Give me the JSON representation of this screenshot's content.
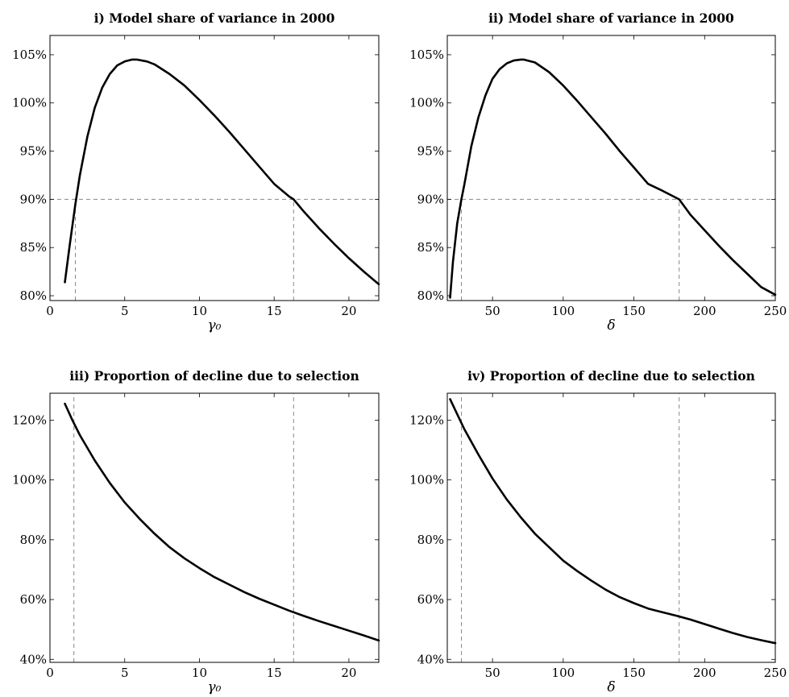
{
  "chart_data": [
    {
      "type": "line",
      "title": "i) Model share of variance in 2000",
      "xlabel": "γ₀",
      "ylabel": "",
      "xlim": [
        0,
        22
      ],
      "ylim": [
        79.5,
        107
      ],
      "xticks": [
        0,
        5,
        10,
        15,
        20
      ],
      "xtick_labels": [
        "0",
        "5",
        "10",
        "15",
        "20"
      ],
      "yticks": [
        80,
        85,
        90,
        95,
        100,
        105
      ],
      "ytick_labels": [
        "80%",
        "85%",
        "90%",
        "95%",
        "100%",
        "105%"
      ],
      "series": [
        {
          "x": [
            1,
            1.3,
            1.7,
            2,
            2.5,
            3,
            3.5,
            4,
            4.5,
            5,
            5.5,
            5.8,
            6.5,
            7,
            8,
            9,
            10,
            11,
            12,
            13,
            14,
            15,
            16,
            16.3,
            17,
            18,
            19,
            20,
            21,
            22
          ],
          "y": [
            81.4,
            85,
            89.5,
            92.5,
            96.5,
            99.5,
            101.6,
            103.0,
            103.9,
            104.3,
            104.5,
            104.5,
            104.3,
            104.0,
            103.0,
            101.8,
            100.3,
            98.7,
            97.0,
            95.2,
            93.4,
            91.6,
            90.3,
            90.0,
            88.7,
            87.0,
            85.4,
            83.9,
            82.5,
            81.2
          ]
        }
      ],
      "h_lines": [
        {
          "y": 90,
          "x_from": 0,
          "x_to": 22
        }
      ],
      "v_lines": [
        {
          "x": 1.7,
          "y_to": 90
        },
        {
          "x": 16.3,
          "y_to": 90
        }
      ],
      "grid": false,
      "legend": "none"
    },
    {
      "type": "line",
      "title": "ii) Model share of variance in 2000",
      "xlabel": "δ",
      "ylabel": "",
      "xlim": [
        18,
        250
      ],
      "ylim": [
        79.5,
        107
      ],
      "xticks": [
        50,
        100,
        150,
        200,
        250
      ],
      "xtick_labels": [
        "50",
        "100",
        "150",
        "200",
        "250"
      ],
      "yticks": [
        80,
        85,
        90,
        95,
        100,
        105
      ],
      "ytick_labels": [
        "80%",
        "85%",
        "90%",
        "95%",
        "100%",
        "105%"
      ],
      "series": [
        {
          "x": [
            20,
            22,
            25,
            28,
            30,
            35,
            40,
            45,
            50,
            55,
            60,
            65,
            70,
            72,
            80,
            90,
            100,
            110,
            120,
            130,
            140,
            150,
            160,
            170,
            182,
            190,
            200,
            210,
            220,
            230,
            240,
            250
          ],
          "y": [
            79.8,
            83.5,
            87.5,
            90,
            91.5,
            95.5,
            98.5,
            100.8,
            102.5,
            103.5,
            104.1,
            104.4,
            104.5,
            104.5,
            104.2,
            103.2,
            101.8,
            100.2,
            98.5,
            96.8,
            95.0,
            93.3,
            91.6,
            90.9,
            90.0,
            88.4,
            86.8,
            85.2,
            83.7,
            82.3,
            80.9,
            80.1
          ]
        }
      ],
      "h_lines": [
        {
          "y": 90,
          "x_from": 18,
          "x_to": 250
        }
      ],
      "v_lines": [
        {
          "x": 28,
          "y_to": 90
        },
        {
          "x": 182,
          "y_to": 90
        }
      ],
      "grid": false,
      "legend": "none"
    },
    {
      "type": "line",
      "title": "iii) Proportion of decline due to selection",
      "xlabel": "γ₀",
      "ylabel": "",
      "xlim": [
        0,
        22
      ],
      "ylim": [
        39,
        129
      ],
      "xticks": [
        0,
        5,
        10,
        15,
        20
      ],
      "xtick_labels": [
        "0",
        "5",
        "10",
        "15",
        "20"
      ],
      "yticks": [
        40,
        60,
        80,
        100,
        120
      ],
      "ytick_labels": [
        "40%",
        "60%",
        "80%",
        "100%",
        "120%"
      ],
      "series": [
        {
          "x": [
            1,
            1.5,
            2,
            3,
            4,
            5,
            6,
            7,
            8,
            9,
            10,
            11,
            12,
            13,
            14,
            15,
            16,
            17,
            18,
            19,
            20,
            21,
            22
          ],
          "y": [
            125.5,
            120,
            115,
            106.5,
            99,
            92.5,
            87,
            82,
            77.5,
            73.8,
            70.5,
            67.5,
            65,
            62.5,
            60.3,
            58.3,
            56.3,
            54.5,
            52.8,
            51.2,
            49.6,
            48.0,
            46.3
          ]
        }
      ],
      "h_lines": [],
      "v_lines": [
        {
          "x": 1.6,
          "y_to": 129
        },
        {
          "x": 16.3,
          "y_to": 129
        }
      ],
      "grid": false,
      "legend": "none"
    },
    {
      "type": "line",
      "title": "iv) Proportion of decline due to selection",
      "xlabel": "δ",
      "ylabel": "",
      "xlim": [
        18,
        250
      ],
      "ylim": [
        39,
        129
      ],
      "xticks": [
        50,
        100,
        150,
        200,
        250
      ],
      "xtick_labels": [
        "50",
        "100",
        "150",
        "200",
        "250"
      ],
      "yticks": [
        40,
        60,
        80,
        100,
        120
      ],
      "ytick_labels": [
        "40%",
        "60%",
        "80%",
        "100%",
        "120%"
      ],
      "series": [
        {
          "x": [
            20,
            25,
            30,
            40,
            50,
            60,
            70,
            80,
            90,
            100,
            110,
            120,
            130,
            140,
            150,
            160,
            170,
            180,
            190,
            200,
            210,
            220,
            230,
            240,
            250
          ],
          "y": [
            127,
            122,
            117,
            108.5,
            100.5,
            93.5,
            87.5,
            82,
            77.5,
            73,
            69.5,
            66.3,
            63.3,
            60.8,
            58.8,
            57,
            55.8,
            54.6,
            53.3,
            51.8,
            50.3,
            48.8,
            47.5,
            46.4,
            45.4
          ]
        }
      ],
      "h_lines": [],
      "v_lines": [
        {
          "x": 28,
          "y_to": 129
        },
        {
          "x": 182,
          "y_to": 129
        }
      ],
      "grid": false,
      "legend": "none"
    }
  ]
}
